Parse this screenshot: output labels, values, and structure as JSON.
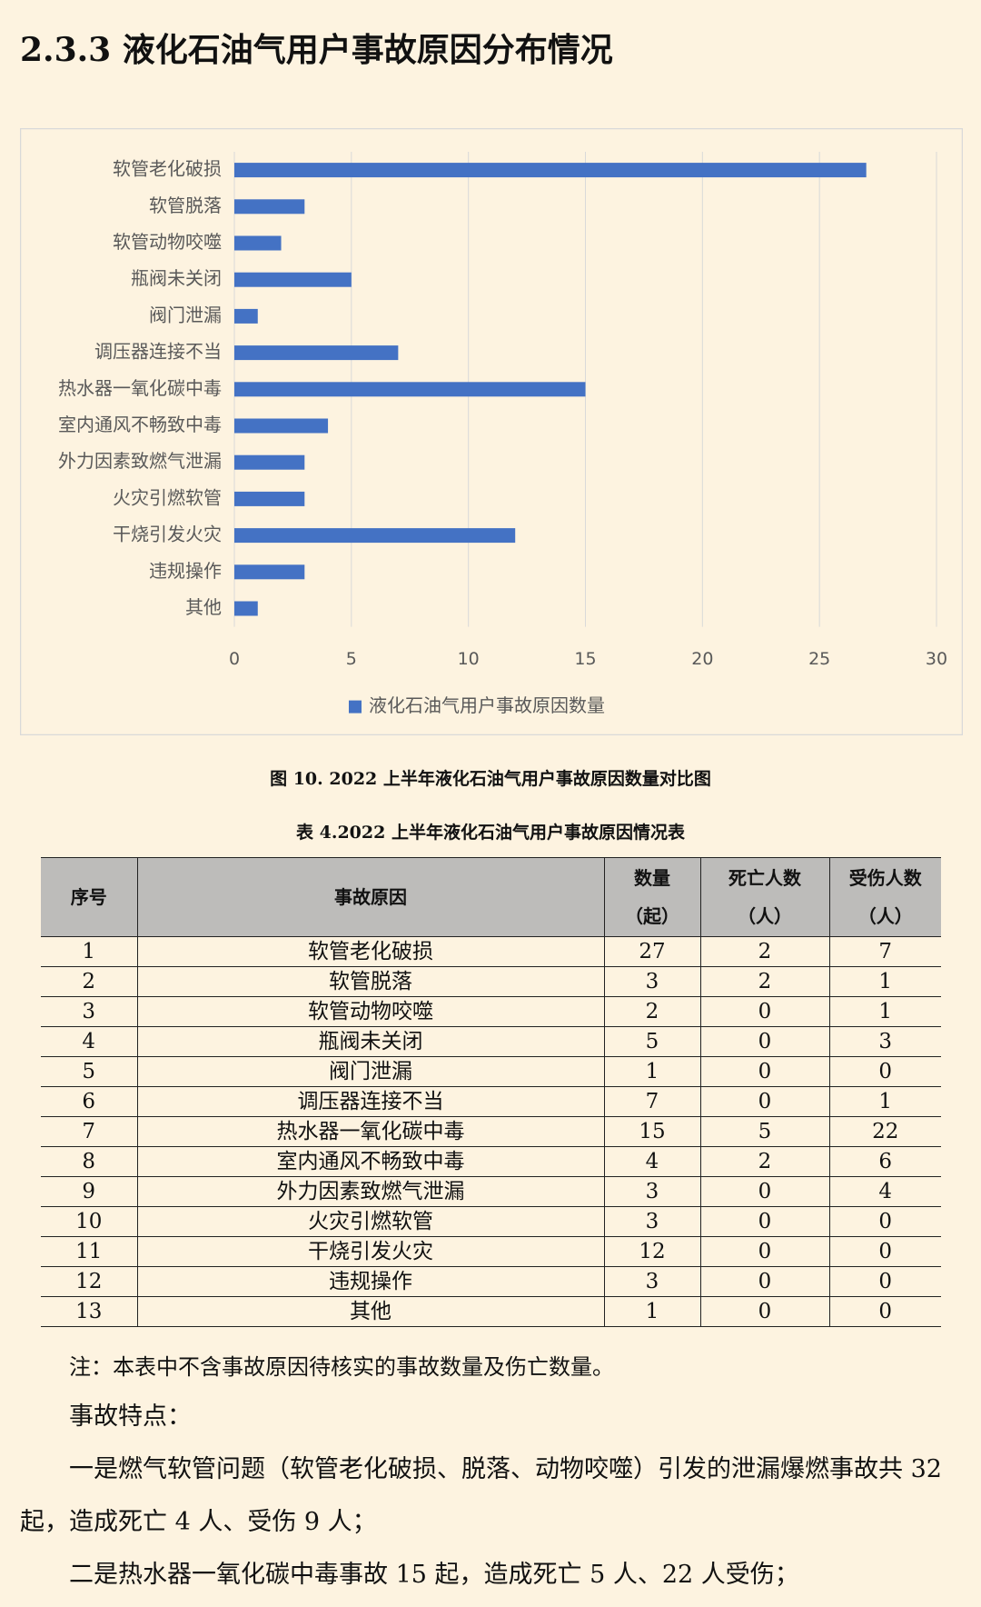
{
  "heading": "2.3.3 液化石油气用户事故原因分布情况",
  "chart_data": {
    "type": "bar",
    "orientation": "horizontal",
    "categories": [
      "软管老化破损",
      "软管脱落",
      "软管动物咬噬",
      "瓶阀未关闭",
      "阀门泄漏",
      "调压器连接不当",
      "热水器一氧化碳中毒",
      "室内通风不畅致中毒",
      "外力因素致燃气泄漏",
      "火灾引燃软管",
      "干烧引发火灾",
      "违规操作",
      "其他"
    ],
    "series": [
      {
        "name": "液化石油气用户事故原因数量",
        "color": "#4472c4",
        "values": [
          27,
          3,
          2,
          5,
          1,
          7,
          15,
          4,
          3,
          3,
          12,
          3,
          1
        ]
      }
    ],
    "xlim": [
      0,
      30
    ],
    "xticks": [
      0,
      5,
      10,
      15,
      20,
      25,
      30
    ],
    "grid": true,
    "legend": "bottom"
  },
  "figure_caption": "图 10. 2022 上半年液化石油气用户事故原因数量对比图",
  "table_caption": "表 4.2022 上半年液化石油气用户事故原因情况表",
  "table": {
    "header": [
      [
        "序号"
      ],
      [
        "事故原因"
      ],
      [
        "数量",
        "（起）"
      ],
      [
        "死亡人数",
        "（人）"
      ],
      [
        "受伤人数",
        "（人）"
      ]
    ],
    "rows": [
      [
        1,
        "软管老化破损",
        27,
        2,
        7
      ],
      [
        2,
        "软管脱落",
        3,
        2,
        1
      ],
      [
        3,
        "软管动物咬噬",
        2,
        0,
        1
      ],
      [
        4,
        "瓶阀未关闭",
        5,
        0,
        3
      ],
      [
        5,
        "阀门泄漏",
        1,
        0,
        0
      ],
      [
        6,
        "调压器连接不当",
        7,
        0,
        1
      ],
      [
        7,
        "热水器一氧化碳中毒",
        15,
        5,
        22
      ],
      [
        8,
        "室内通风不畅致中毒",
        4,
        2,
        6
      ],
      [
        9,
        "外力因素致燃气泄漏",
        3,
        0,
        4
      ],
      [
        10,
        "火灾引燃软管",
        3,
        0,
        0
      ],
      [
        11,
        "干烧引发火灾",
        12,
        0,
        0
      ],
      [
        12,
        "违规操作",
        3,
        0,
        0
      ],
      [
        13,
        "其他",
        1,
        0,
        0
      ]
    ]
  },
  "note": "注：本表中不含事故原因待核实的事故数量及伤亡数量。",
  "paragraphs": [
    "事故特点：",
    "一是燃气软管问题（软管老化破损、脱落、动物咬噬）引发的泄漏爆燃事故共 32 起，造成死亡 4 人、受伤 9 人；",
    "二是热水器一氧化碳中毒事故 15 起，造成死亡 5 人、22 人受伤；"
  ]
}
